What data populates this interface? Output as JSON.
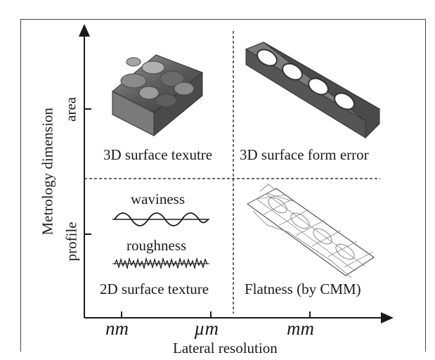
{
  "figure": {
    "y_axis": {
      "title": "Metrology dimension",
      "ticks": [
        "area",
        "profile"
      ]
    },
    "x_axis": {
      "title": "Lateral resolution",
      "ticks": [
        "nm",
        "µm",
        "mm"
      ]
    },
    "quadrants": {
      "top_left": "3D surface texutre",
      "top_right": "3D surface form error",
      "bottom_left": "2D surface texture",
      "bottom_right": "Flatness (by CMM)"
    },
    "profile_labels": {
      "waviness": "waviness",
      "roughness": "roughness"
    }
  },
  "colors": {
    "axis": "#1a1a1a",
    "divider": "#333333",
    "surface": "#6e6e6e",
    "mesh": "#888888"
  }
}
